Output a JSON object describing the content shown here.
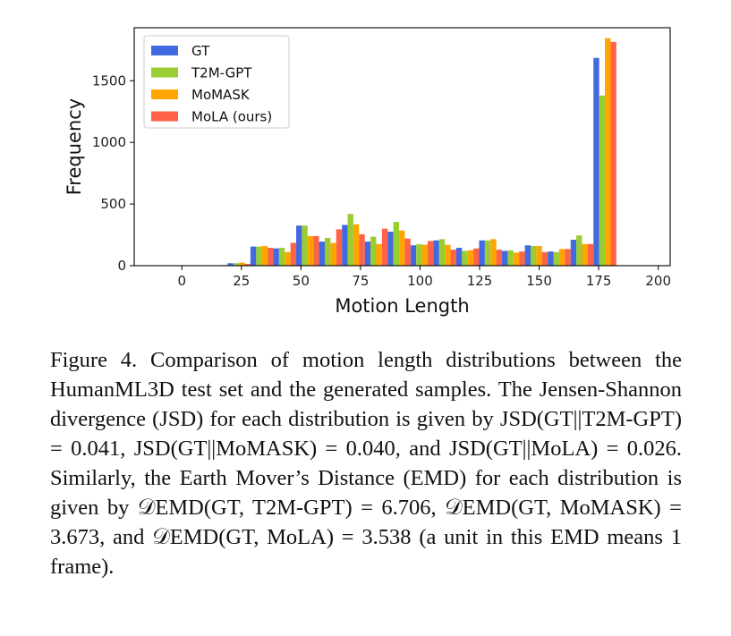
{
  "chart_data": {
    "type": "bar",
    "title": "",
    "xlabel": "Motion Length",
    "ylabel": "Frequency",
    "xlim": [
      -20,
      205
    ],
    "ylim": [
      0,
      1930
    ],
    "xticks": [
      0,
      25,
      50,
      75,
      100,
      125,
      150,
      175,
      200
    ],
    "yticks": [
      0,
      500,
      1000,
      1500
    ],
    "bin_width": 9.6,
    "bin_centers": [
      4.8,
      14.4,
      24.0,
      33.6,
      43.2,
      52.8,
      62.4,
      72.0,
      81.6,
      91.2,
      100.8,
      110.4,
      120.0,
      129.6,
      139.2,
      148.8,
      158.4,
      168.0,
      177.6,
      187.2,
      196.8
    ],
    "legend_position": "upper-left",
    "grid": false,
    "series": [
      {
        "name": "GT",
        "color": "#4169e1",
        "values": [
          0,
          2,
          20,
          155,
          140,
          325,
          195,
          330,
          195,
          275,
          165,
          205,
          145,
          205,
          120,
          165,
          115,
          210,
          1685,
          0,
          0
        ]
      },
      {
        "name": "T2M-GPT",
        "color": "#9acd32",
        "values": [
          0,
          2,
          20,
          155,
          145,
          325,
          225,
          420,
          235,
          355,
          175,
          215,
          120,
          205,
          125,
          160,
          110,
          245,
          1380,
          0,
          0
        ]
      },
      {
        "name": "MoMASK",
        "color": "#ffa500",
        "values": [
          0,
          2,
          25,
          160,
          110,
          240,
          185,
          335,
          175,
          285,
          170,
          170,
          125,
          215,
          105,
          160,
          135,
          175,
          1845,
          0,
          0
        ]
      },
      {
        "name": "MoLA (ours)",
        "color": "#ff6347",
        "values": [
          0,
          5,
          15,
          145,
          185,
          240,
          295,
          255,
          300,
          220,
          200,
          130,
          140,
          130,
          115,
          110,
          135,
          175,
          1815,
          0,
          0
        ]
      }
    ]
  },
  "caption": {
    "parts": [
      "Figure 4.  Comparison of motion length distributions between the HumanML3D test set and the generated samples.  The Jensen-Shannon divergence (JSD) for each distribution is given by ",
      "JSD(GT||T2M-GPT) = 0.041",
      ", ",
      "JSD(GT||MoMASK) = 0.040",
      ", and ",
      "JSD(GT||MoLA) = 0.026",
      ". Similarly, the Earth Mover’s Distance (EMD) for each distribution is given by ",
      "𝒟EMD(GT, T2M-GPT) = 6.706",
      ", ",
      "𝒟EMD(GT, MoMASK) = 3.673",
      ", and ",
      "𝒟EMD(GT, MoLA) = 3.538",
      " (a unit in this EMD means 1 frame)."
    ]
  }
}
